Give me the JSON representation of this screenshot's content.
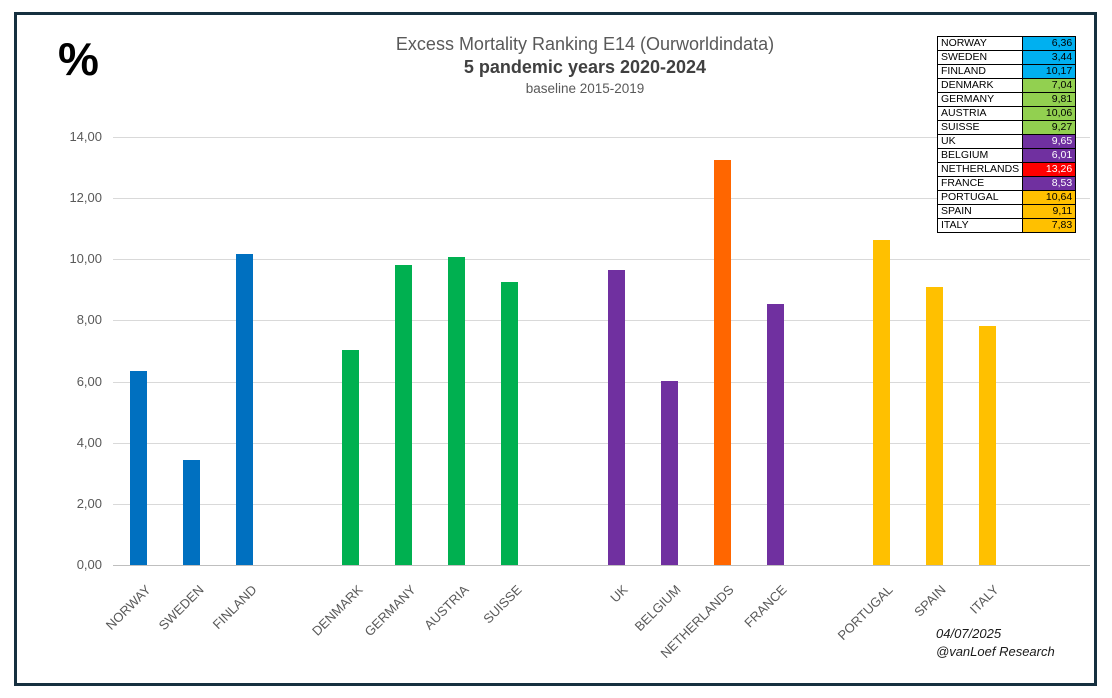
{
  "page": {
    "unit_symbol": "%",
    "footer_date": "04/07/2025",
    "footer_credit": "@vanLoef Research"
  },
  "chart_data": {
    "type": "bar",
    "title": "Excess Mortality Ranking E14 (Ourworldindata)",
    "subtitle": "5 pandemic years 2020-2024",
    "baseline_note": "baseline 2015-2019",
    "ylabel": "%",
    "ylim": [
      0,
      14
    ],
    "ytick_step": 2,
    "ytick_labels": [
      "0,00",
      "2,00",
      "4,00",
      "6,00",
      "8,00",
      "10,00",
      "12,00",
      "14,00"
    ],
    "grid": true,
    "legend_position": "top-right",
    "colors": {
      "nordics_bar": "#0070C0",
      "nordics_legend": "#00B0F0",
      "central_bar": "#00B050",
      "central_legend": "#92D050",
      "west_bar": "#7030A0",
      "west_legend": "#7030A0",
      "netherlands_bar": "#FF6600",
      "netherlands_legend": "#FF0000",
      "south_bar": "#FFC000",
      "south_legend": "#FFC000",
      "gridline": "#D9D9D9",
      "frame_border": "#16303F",
      "text_gray": "#595959"
    },
    "series": [
      {
        "name": "NORWAY",
        "value": 6.36,
        "label": "6,36",
        "slot": 0,
        "bar_color": "#0070C0",
        "legend_color": "#00B0F0",
        "legend_text_color": "#000000"
      },
      {
        "name": "SWEDEN",
        "value": 3.44,
        "label": "3,44",
        "slot": 1,
        "bar_color": "#0070C0",
        "legend_color": "#00B0F0",
        "legend_text_color": "#000000"
      },
      {
        "name": "FINLAND",
        "value": 10.17,
        "label": "10,17",
        "slot": 2,
        "bar_color": "#0070C0",
        "legend_color": "#00B0F0",
        "legend_text_color": "#000000"
      },
      {
        "name": "DENMARK",
        "value": 7.04,
        "label": "7,04",
        "slot": 4,
        "bar_color": "#00B050",
        "legend_color": "#92D050",
        "legend_text_color": "#000000"
      },
      {
        "name": "GERMANY",
        "value": 9.81,
        "label": "9,81",
        "slot": 5,
        "bar_color": "#00B050",
        "legend_color": "#92D050",
        "legend_text_color": "#000000"
      },
      {
        "name": "AUSTRIA",
        "value": 10.06,
        "label": "10,06",
        "slot": 6,
        "bar_color": "#00B050",
        "legend_color": "#92D050",
        "legend_text_color": "#000000"
      },
      {
        "name": "SUISSE",
        "value": 9.27,
        "label": "9,27",
        "slot": 7,
        "bar_color": "#00B050",
        "legend_color": "#92D050",
        "legend_text_color": "#000000"
      },
      {
        "name": "UK",
        "value": 9.65,
        "label": "9,65",
        "slot": 9,
        "bar_color": "#7030A0",
        "legend_color": "#7030A0",
        "legend_text_color": "#FFFFFF"
      },
      {
        "name": "BELGIUM",
        "value": 6.01,
        "label": "6,01",
        "slot": 10,
        "bar_color": "#7030A0",
        "legend_color": "#7030A0",
        "legend_text_color": "#FFFFFF"
      },
      {
        "name": "NETHERLANDS",
        "value": 13.26,
        "label": "13,26",
        "slot": 11,
        "bar_color": "#FF6600",
        "legend_color": "#FF0000",
        "legend_text_color": "#FFFFFF"
      },
      {
        "name": "FRANCE",
        "value": 8.53,
        "label": "8,53",
        "slot": 12,
        "bar_color": "#7030A0",
        "legend_color": "#7030A0",
        "legend_text_color": "#FFFFFF"
      },
      {
        "name": "PORTUGAL",
        "value": 10.64,
        "label": "10,64",
        "slot": 14,
        "bar_color": "#FFC000",
        "legend_color": "#FFC000",
        "legend_text_color": "#000000"
      },
      {
        "name": "SPAIN",
        "value": 9.11,
        "label": "9,11",
        "slot": 15,
        "bar_color": "#FFC000",
        "legend_color": "#FFC000",
        "legend_text_color": "#000000"
      },
      {
        "name": "ITALY",
        "value": 7.83,
        "label": "7,83",
        "slot": 16,
        "bar_color": "#FFC000",
        "legend_color": "#FFC000",
        "legend_text_color": "#000000"
      }
    ]
  }
}
